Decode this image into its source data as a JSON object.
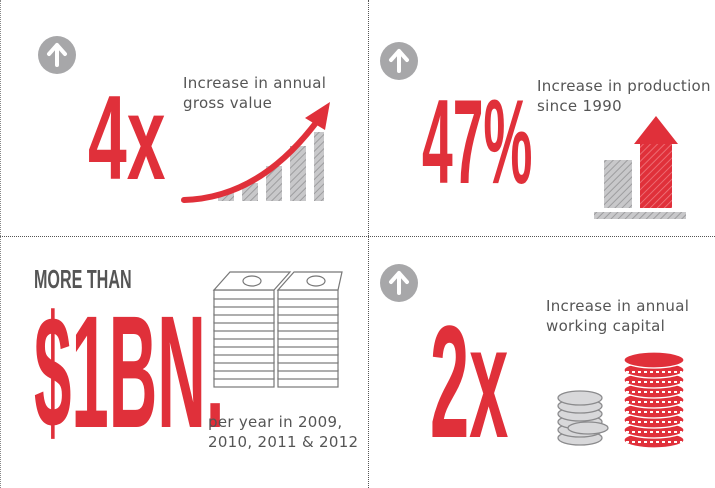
{
  "panels": {
    "top_left": {
      "value": "4x",
      "caption_line1": "Increase in annual",
      "caption_line2": "gross value",
      "icon": "arrow-up-icon"
    },
    "top_right": {
      "value": "47%",
      "caption_line1": "Increase in production",
      "caption_line2": "since 1990",
      "icon": "arrow-up-icon"
    },
    "bottom_left": {
      "prefix": "MORE THAN",
      "value": "$1BN.",
      "caption_line1": "per year in 2009,",
      "caption_line2": "2010, 2011 & 2012",
      "icon": "money-stack-icon"
    },
    "bottom_right": {
      "value": "2x",
      "caption_line1": "Increase in annual",
      "caption_line2": "working capital",
      "icon": "arrow-up-icon"
    }
  },
  "colors": {
    "accent": "#e0303a",
    "gray": "#a7a7a9",
    "text": "#555555"
  }
}
